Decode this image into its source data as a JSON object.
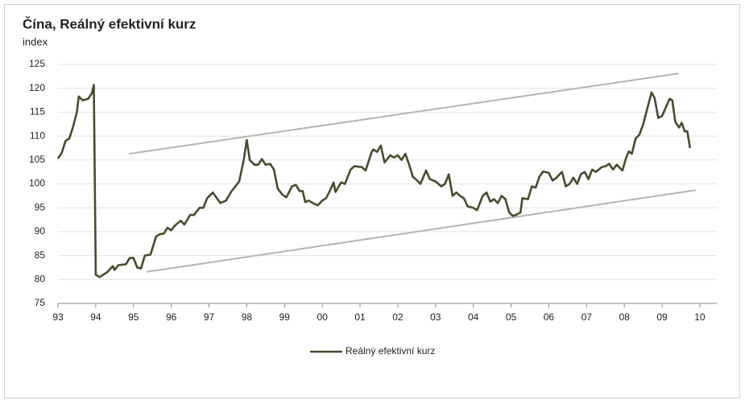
{
  "chart_data": {
    "type": "line",
    "title": "Čína, Reálný efektivní kurz",
    "y_label": "index",
    "xlim": [
      1993,
      2010.45
    ],
    "xticks": [
      {
        "value": 1993,
        "label": "93"
      },
      {
        "value": 1994,
        "label": "94"
      },
      {
        "value": 1995,
        "label": "95"
      },
      {
        "value": 1996,
        "label": "96"
      },
      {
        "value": 1997,
        "label": "97"
      },
      {
        "value": 1998,
        "label": "98"
      },
      {
        "value": 1999,
        "label": "99"
      },
      {
        "value": 2000,
        "label": "00"
      },
      {
        "value": 2001,
        "label": "01"
      },
      {
        "value": 2002,
        "label": "02"
      },
      {
        "value": 2003,
        "label": "03"
      },
      {
        "value": 2004,
        "label": "04"
      },
      {
        "value": 2005,
        "label": "05"
      },
      {
        "value": 2006,
        "label": "06"
      },
      {
        "value": 2007,
        "label": "07"
      },
      {
        "value": 2008,
        "label": "08"
      },
      {
        "value": 2009,
        "label": "09"
      },
      {
        "value": 2010,
        "label": "10"
      }
    ],
    "ylim": [
      75,
      125
    ],
    "yticks": [
      75,
      80,
      85,
      90,
      95,
      100,
      105,
      110,
      115,
      120,
      125
    ],
    "grid": true,
    "legend": "bottom",
    "series": [
      {
        "name": "Reálný efektivní kurz",
        "color": "#4a4a2e",
        "x": [
          1993.0,
          1993.1,
          1993.2,
          1993.3,
          1993.4,
          1993.5,
          1993.55,
          1993.65,
          1993.8,
          1993.9,
          1993.95,
          1994.0,
          1994.1,
          1994.3,
          1994.45,
          1994.5,
          1994.6,
          1994.8,
          1994.9,
          1995.0,
          1995.1,
          1995.2,
          1995.3,
          1995.45,
          1995.6,
          1995.7,
          1995.8,
          1995.9,
          1996.0,
          1996.1,
          1996.25,
          1996.35,
          1996.5,
          1996.6,
          1996.75,
          1996.85,
          1996.95,
          1997.1,
          1997.3,
          1997.45,
          1997.6,
          1997.8,
          1997.92,
          1998.0,
          1998.08,
          1998.2,
          1998.3,
          1998.4,
          1998.5,
          1998.62,
          1998.72,
          1998.82,
          1998.95,
          1999.05,
          1999.2,
          1999.3,
          1999.4,
          1999.48,
          1999.55,
          1999.65,
          1999.75,
          1999.88,
          2000.0,
          2000.1,
          2000.2,
          2000.3,
          2000.35,
          2000.5,
          2000.6,
          2000.75,
          2000.85,
          2001.05,
          2001.15,
          2001.3,
          2001.35,
          2001.45,
          2001.55,
          2001.65,
          2001.8,
          2001.9,
          2002.0,
          2002.1,
          2002.2,
          2002.3,
          2002.4,
          2002.5,
          2002.6,
          2002.75,
          2002.85,
          2003.0,
          2003.15,
          2003.25,
          2003.35,
          2003.45,
          2003.55,
          2003.65,
          2003.75,
          2003.85,
          2004.0,
          2004.1,
          2004.25,
          2004.35,
          2004.45,
          2004.55,
          2004.65,
          2004.75,
          2004.85,
          2004.95,
          2005.05,
          2005.15,
          2005.25,
          2005.3,
          2005.45,
          2005.55,
          2005.65,
          2005.75,
          2005.85,
          2006.0,
          2006.1,
          2006.2,
          2006.35,
          2006.45,
          2006.55,
          2006.65,
          2006.75,
          2006.85,
          2006.95,
          2007.05,
          2007.15,
          2007.25,
          2007.4,
          2007.5,
          2007.6,
          2007.7,
          2007.8,
          2007.95,
          2008.05,
          2008.12,
          2008.2,
          2008.3,
          2008.4,
          2008.5,
          2008.6,
          2008.72,
          2008.8,
          2008.9,
          2009.0,
          2009.1,
          2009.2,
          2009.27,
          2009.35,
          2009.45,
          2009.52,
          2009.6,
          2009.67,
          2009.74
        ],
        "values": [
          105.3,
          106.5,
          109,
          109.5,
          112,
          115,
          118.3,
          117.5,
          117.8,
          119,
          120.7,
          81,
          80.5,
          81.5,
          82.8,
          82,
          83,
          83.2,
          84.5,
          84.5,
          82.5,
          82.3,
          85,
          85.2,
          89,
          89.5,
          89.6,
          90.8,
          90.3,
          91.3,
          92.3,
          91.5,
          93.5,
          93.5,
          95,
          95,
          97,
          98.2,
          96,
          96.5,
          98.5,
          100.5,
          105,
          109.2,
          105,
          104,
          104,
          105.2,
          104,
          104.2,
          103,
          99,
          97.7,
          97.2,
          99.5,
          99.8,
          98.5,
          98.5,
          96.2,
          96.5,
          96,
          95.5,
          96.5,
          97,
          98.5,
          100.3,
          98.3,
          100.3,
          100,
          103,
          103.7,
          103.5,
          102.8,
          106.5,
          107.2,
          106.7,
          108,
          104.5,
          106,
          105.5,
          106,
          105,
          106.3,
          104,
          101.5,
          100.8,
          100,
          102.8,
          101,
          100.5,
          99.5,
          100,
          102,
          97.5,
          98.2,
          97.5,
          97,
          95.3,
          95,
          94.5,
          97.5,
          98.2,
          96.3,
          96.8,
          96,
          97.5,
          96.8,
          94,
          93.3,
          93.6,
          94,
          97,
          96.8,
          99.5,
          99.2,
          101.5,
          102.6,
          102.3,
          100.7,
          101.3,
          102.5,
          99.5,
          100,
          101.3,
          100,
          102,
          102.5,
          101,
          103,
          102.5,
          103.5,
          103.7,
          104.2,
          103,
          104,
          102.8,
          105.5,
          106.8,
          106.3,
          109.5,
          110.3,
          112.5,
          115.5,
          119.1,
          118,
          113.8,
          114.2,
          116,
          117.8,
          117.5,
          113,
          111.8,
          112.8,
          111,
          111,
          107.5
        ]
      }
    ],
    "trend_lines": [
      {
        "color": "#b4b4b4",
        "x": [
          1994.88,
          2009.44
        ],
        "values": [
          106.3,
          123.1
        ]
      },
      {
        "color": "#b4b4b4",
        "x": [
          1995.35,
          2009.9
        ],
        "values": [
          81.6,
          98.7
        ]
      }
    ]
  }
}
